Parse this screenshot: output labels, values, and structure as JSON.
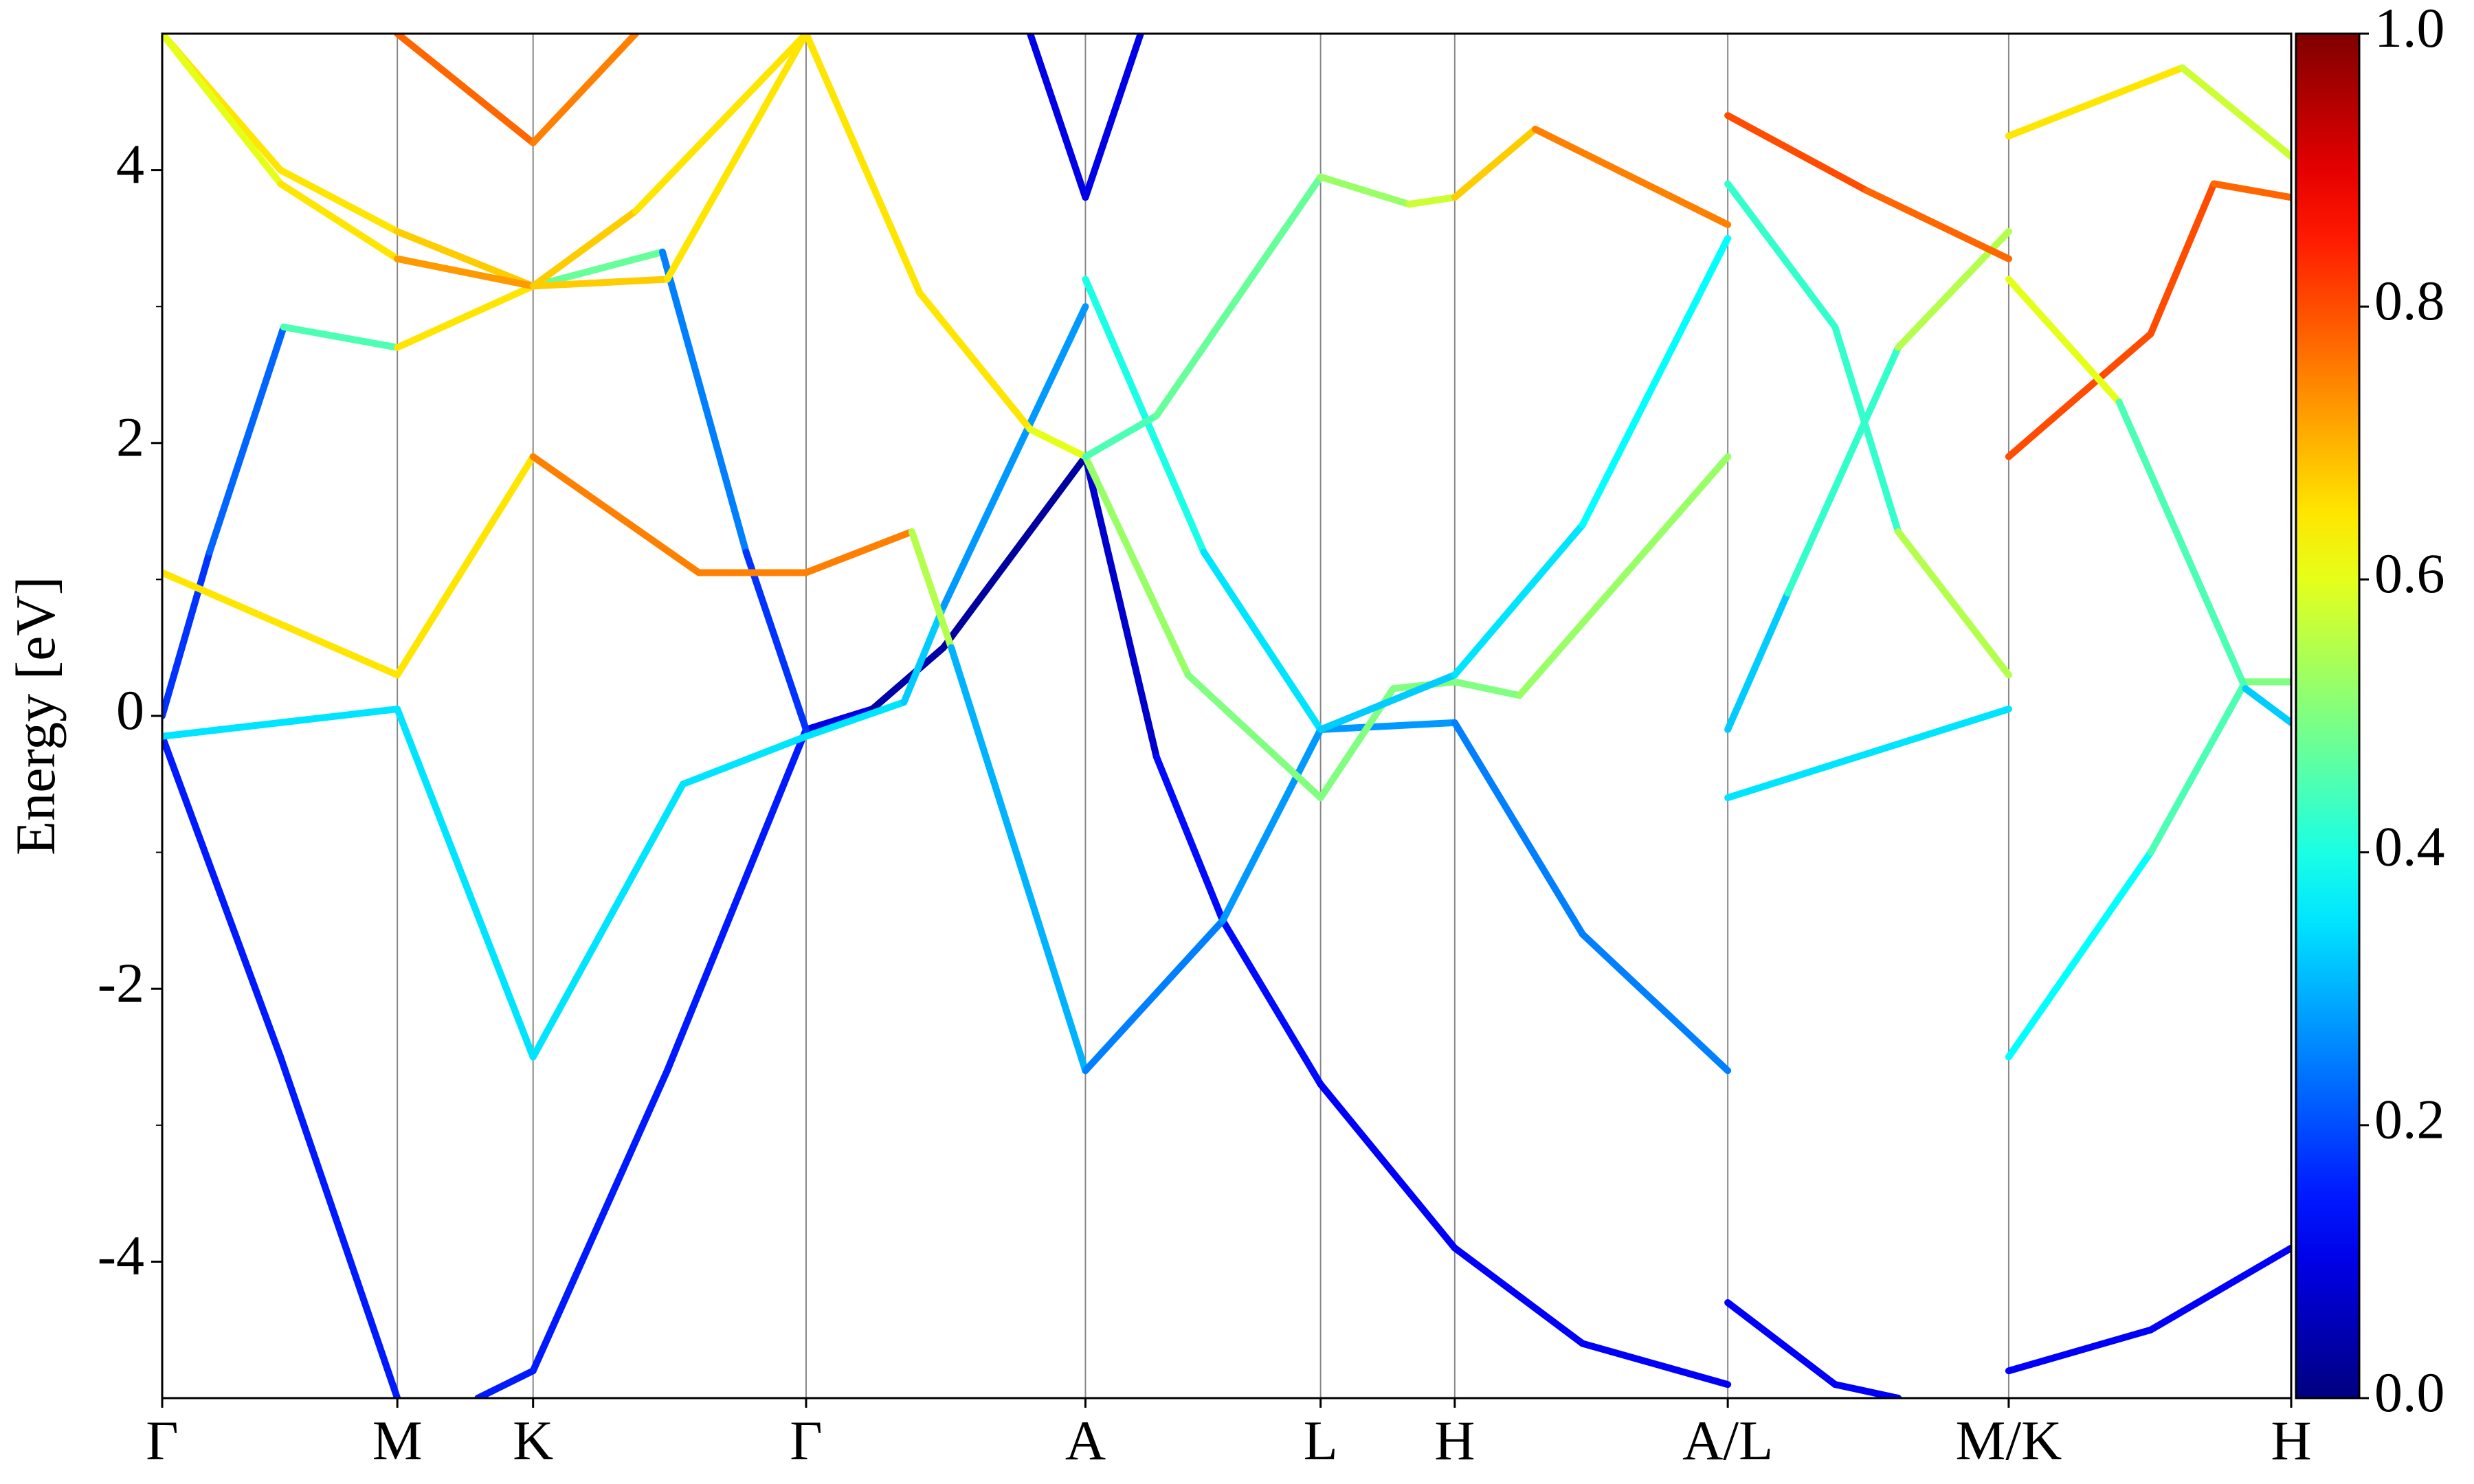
{
  "chart_data": {
    "type": "band_structure",
    "ylabel": "Energy [eV]",
    "xlim": [
      0,
      13.49
    ],
    "ylim": [
      -5,
      5
    ],
    "xticks": [
      {
        "value": 0,
        "label": "Γ"
      },
      {
        "value": 1.49,
        "label": "M"
      },
      {
        "value": 2.35,
        "label": "K"
      },
      {
        "value": 4.08,
        "label": "Γ"
      },
      {
        "value": 5.85,
        "label": "A"
      },
      {
        "value": 7.34,
        "label": "L"
      },
      {
        "value": 8.19,
        "label": "H"
      },
      {
        "value": 9.92,
        "label": "A/L"
      },
      {
        "value": 11.7,
        "label": "M/K"
      },
      {
        "value": 13.49,
        "label": "H"
      }
    ],
    "yticks": [
      -4,
      -2,
      0,
      2,
      4
    ],
    "yminorticks": [
      -3,
      -1,
      1,
      3
    ],
    "grid_x": true,
    "colormap": "jet",
    "clim": [
      0,
      1
    ],
    "cticks": [
      {
        "value": 0,
        "label": "0.0"
      },
      0.2,
      0.4,
      0.6,
      0.8,
      {
        "value": 1,
        "label": "1.0"
      }
    ],
    "series": [
      {
        "x": [
          0,
          0.75,
          1.49
        ],
        "values": [
          -0.15,
          -2.5,
          -5
        ],
        "weights": [
          0.15,
          0.15,
          0.15
        ]
      },
      {
        "x": [
          2.0,
          2.35,
          3.2,
          4.08,
          4.5,
          4.95,
          5.85,
          6.3,
          6.72,
          7.34,
          8.19,
          9.0,
          9.92
        ],
        "values": [
          -5,
          -4.8,
          -2.6,
          -0.1,
          0.05,
          0.5,
          1.9,
          -0.3,
          -1.5,
          -2.7,
          -3.9,
          -4.6,
          -4.9
        ],
        "weights": [
          0.15,
          0.15,
          0.15,
          0.15,
          0.05,
          0.03,
          0.03,
          0.12,
          0.15,
          0.12,
          0.12,
          0.12,
          0.12
        ]
      },
      {
        "x": [
          0,
          1.49,
          2.35,
          3.3,
          4.08,
          4.7,
          4.95,
          5.85
        ],
        "values": [
          -0.15,
          0.05,
          -2.5,
          -0.5,
          -0.15,
          0.1,
          0.8,
          3.0
        ],
        "weights": [
          0.35,
          0.35,
          0.35,
          0.35,
          0.35,
          0.35,
          0.3,
          0.25
        ]
      },
      {
        "x": [
          0,
          0.3,
          0.77,
          1.49,
          2.35,
          3.17,
          3.7,
          4.08
        ],
        "values": [
          0,
          1.2,
          2.85,
          2.7,
          3.15,
          3.4,
          1.2,
          -0.1
        ],
        "weights": [
          0.15,
          0.2,
          0.25,
          0.65,
          0.65,
          0.3,
          0.2,
          0.15
        ]
      },
      {
        "x": [
          0,
          1.49,
          2.35,
          3.4,
          4.08,
          4.75,
          5.0,
          5.85,
          6.72,
          7.34,
          8.19,
          9.0,
          9.92
        ],
        "values": [
          1.05,
          0.3,
          1.9,
          1.05,
          1.05,
          1.35,
          0.5,
          -2.6,
          -1.5,
          -0.1,
          -0.05,
          -1.6,
          -2.6
        ],
        "weights": [
          0.75,
          0.55,
          0.75,
          0.75,
          0.75,
          0.75,
          0.35,
          0.25,
          0.25,
          0.3,
          0.25,
          0.25,
          0.25
        ]
      },
      {
        "x": [
          4.08,
          4.8,
          5.5,
          5.85,
          6.5,
          7.34,
          7.8,
          8.19,
          8.6,
          9.92
        ],
        "values": [
          5,
          3.1,
          2.1,
          1.9,
          0.3,
          -0.6,
          0.2,
          0.25,
          0.15,
          1.9
        ],
        "weights": [
          0.65,
          0.65,
          0.65,
          0.55,
          0.5,
          0.5,
          0.5,
          0.5,
          0.5,
          0.55
        ]
      },
      {
        "x": [
          5.85,
          6.6,
          7.34
        ],
        "values": [
          3.2,
          1.2,
          -0.1
        ],
        "weights": [
          0.4,
          0.4,
          0.3
        ]
      },
      {
        "x": [
          5.85,
          6.3,
          7.34,
          7.9,
          8.19,
          8.7,
          9.92
        ],
        "values": [
          1.9,
          2.2,
          3.95,
          3.75,
          3.8,
          4.3,
          3.6
        ],
        "weights": [
          0.45,
          0.45,
          0.5,
          0.55,
          0.6,
          0.75,
          0.75
        ]
      },
      {
        "x": [
          7.34,
          8.19,
          9.0,
          9.92
        ],
        "values": [
          -0.1,
          0.3,
          1.4,
          3.5
        ],
        "weights": [
          0.3,
          0.35,
          0.35,
          0.4
        ]
      },
      {
        "x": [
          1.49,
          2.35,
          3.0
        ],
        "values": [
          5,
          4.2,
          5
        ],
        "weights": [
          0.8,
          0.75,
          0.75
        ]
      },
      {
        "x": [
          0,
          0.75,
          1.49,
          2.35,
          3.2,
          4.08
        ],
        "values": [
          5,
          4.0,
          3.55,
          3.15,
          3.2,
          5
        ],
        "weights": [
          0.65,
          0.65,
          0.65,
          0.7,
          0.65,
          0.65
        ]
      },
      {
        "x": [
          0,
          0.75,
          1.49,
          2.35,
          3.0,
          4.08
        ],
        "values": [
          5,
          3.9,
          3.35,
          3.15,
          3.7,
          5
        ],
        "weights": [
          0.65,
          0.55,
          0.75,
          0.7,
          0.65,
          0.65
        ]
      },
      {
        "x": [
          9.92,
          10.3,
          11.0,
          11.7
        ],
        "values": [
          -0.1,
          0.9,
          2.7,
          3.55
        ],
        "weights": [
          0.3,
          0.35,
          0.5,
          0.6
        ]
      },
      {
        "x": [
          9.92,
          11.7
        ],
        "values": [
          -0.6,
          0.05
        ],
        "weights": [
          0.35,
          0.35
        ]
      },
      {
        "x": [
          11.7,
          12.6,
          13.2,
          13.49
        ],
        "values": [
          -2.5,
          -1.0,
          0.25,
          0.25
        ],
        "weights": [
          0.35,
          0.4,
          0.5,
          0.5
        ]
      },
      {
        "x": [
          9.92,
          10.6,
          11.0,
          11.7
        ],
        "values": [
          3.9,
          2.85,
          1.35,
          0.3
        ],
        "weights": [
          0.55,
          0.3,
          0.55,
          0.55
        ]
      },
      {
        "x": [
          9.92,
          10.6,
          11.0
        ],
        "values": [
          -4.3,
          -4.9,
          -5
        ],
        "weights": [
          0.12,
          0.12,
          0.12
        ]
      },
      {
        "x": [
          11.7,
          12.6,
          13.49
        ],
        "values": [
          -4.8,
          -4.5,
          -3.9
        ],
        "weights": [
          0.12,
          0.12,
          0.12
        ]
      },
      {
        "x": [
          11.7,
          12.6,
          13.0,
          13.49
        ],
        "values": [
          1.9,
          2.8,
          3.9,
          3.8
        ],
        "weights": [
          0.8,
          0.8,
          0.8,
          0.75
        ]
      },
      {
        "x": [
          11.7,
          12.8,
          13.49
        ],
        "values": [
          4.25,
          4.75,
          4.1
        ],
        "weights": [
          0.7,
          0.6,
          0.55
        ]
      },
      {
        "x": [
          9.92,
          10.8,
          11.7
        ],
        "values": [
          4.4,
          3.85,
          3.35
        ],
        "weights": [
          0.85,
          0.75,
          0.8
        ]
      },
      {
        "x": [
          11.7,
          12.4,
          13.2,
          13.49
        ],
        "values": [
          3.2,
          2.3,
          0.2,
          -0.05
        ],
        "weights": [
          0.65,
          0.55,
          0.35,
          0.3
        ]
      },
      {
        "x": [
          5.5,
          5.85,
          6.2
        ],
        "values": [
          5,
          3.8,
          5
        ],
        "weights": [
          0.1,
          0.1,
          0.1
        ]
      }
    ]
  }
}
